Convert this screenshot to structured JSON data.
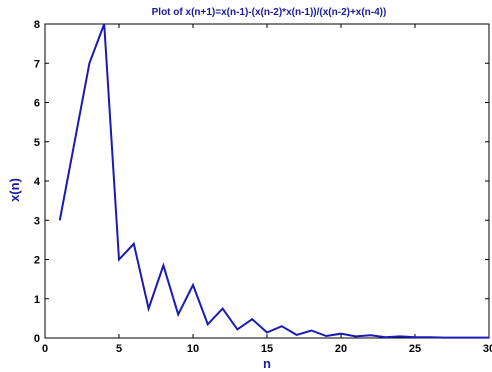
{
  "chart_data": {
    "type": "line",
    "title": "Plot of x(n+1)=x(n-1)-(x(n-2)*x(n-1))/(x(n-2)+x(n-4))",
    "xlabel": "n",
    "ylabel": "x(n)",
    "xlim": [
      0,
      30
    ],
    "ylim": [
      0,
      8
    ],
    "xticks": [
      "0",
      "5",
      "10",
      "15",
      "20",
      "25",
      "30"
    ],
    "yticks": [
      "0",
      "1",
      "2",
      "3",
      "4",
      "5",
      "6",
      "7",
      "8"
    ],
    "grid": false,
    "series": [
      {
        "x": [
          1,
          2,
          3,
          4,
          5,
          6,
          7,
          8,
          9,
          10,
          11,
          12,
          13,
          14,
          15,
          16,
          17,
          18,
          19,
          20,
          21,
          22,
          23,
          24,
          25,
          26,
          27,
          28,
          29,
          30
        ],
        "values": [
          3.0,
          5.0,
          7.0,
          8.0,
          2.0,
          2.4,
          0.75,
          1.85,
          0.6,
          1.35,
          0.35,
          0.75,
          0.22,
          0.48,
          0.14,
          0.3,
          0.08,
          0.19,
          0.05,
          0.11,
          0.04,
          0.07,
          0.02,
          0.04,
          0.02,
          0.02,
          0.01,
          0.01,
          0.01,
          0.01
        ]
      }
    ],
    "colors": {
      "line": "#1a1ab4",
      "text": "#1a1aa0",
      "axes": "#000000"
    }
  }
}
